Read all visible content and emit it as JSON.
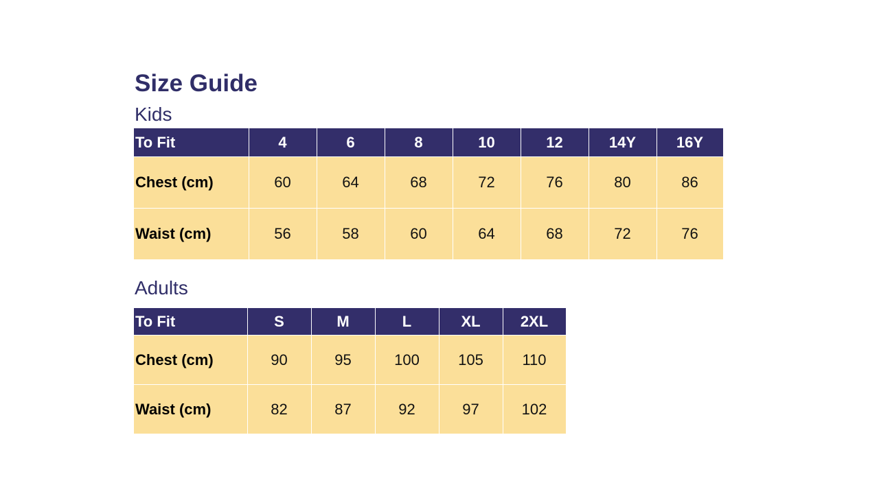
{
  "title": "Size Guide",
  "kids": {
    "heading": "Kids",
    "header": [
      "To Fit",
      "4",
      "6",
      "8",
      "10",
      "12",
      "14Y",
      "16Y"
    ],
    "rows": [
      [
        "Chest (cm)",
        "60",
        "64",
        "68",
        "72",
        "76",
        "80",
        "86"
      ],
      [
        "Waist (cm)",
        "56",
        "58",
        "60",
        "64",
        "68",
        "72",
        "76"
      ]
    ]
  },
  "adults": {
    "heading": "Adults",
    "header": [
      "To Fit",
      "S",
      "M",
      "L",
      "XL",
      "2XL"
    ],
    "rows": [
      [
        "Chest (cm)",
        "90",
        "95",
        "100",
        "105",
        "110"
      ],
      [
        "Waist (cm)",
        "82",
        "87",
        "92",
        "97",
        "102"
      ]
    ]
  },
  "colors": {
    "header_bg": "#332e6a",
    "cell_bg": "#fbdf99",
    "title": "#302e68"
  }
}
